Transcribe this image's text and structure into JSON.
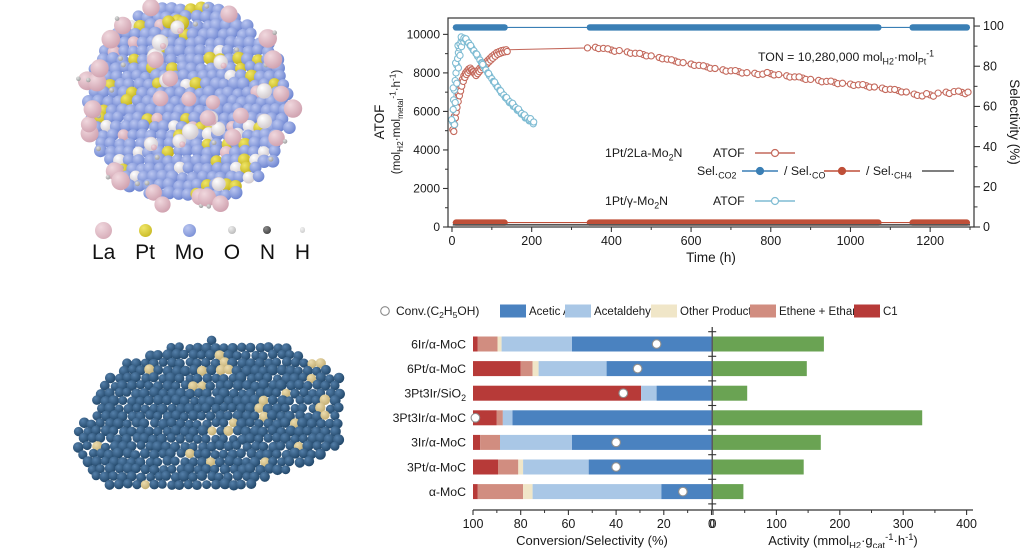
{
  "atom_legend": {
    "items": [
      {
        "label": "La",
        "color": "#cfa0ae",
        "highlight": "#f0d8de",
        "size": 17
      },
      {
        "label": "Pt",
        "color": "#bfae14",
        "highlight": "#f0e668",
        "size": 13
      },
      {
        "label": "Mo",
        "color": "#6a82cf",
        "highlight": "#bac6f0",
        "size": 13
      },
      {
        "label": "O",
        "color": "#ababab",
        "highlight": "#eeeeee",
        "size": 8
      },
      {
        "label": "N",
        "color": "#2f2f2f",
        "highlight": "#8a8a8a",
        "size": 8
      },
      {
        "label": "H",
        "color": "#c4c4c4",
        "highlight": "#f2f2f2",
        "size": 5.5
      }
    ]
  },
  "structures": {
    "top": {
      "base_color": "#6a82cf",
      "base_hi": "#bac6f0",
      "dopant_color": "#bfae14",
      "dopant_hi": "#f0e668",
      "surface_color": "#cfa0ae",
      "surface_hi": "#f0d8de",
      "white_color": "#cfc8cc",
      "white_hi": "#ffffff",
      "speck_color": "#9a9a9a",
      "speck_hi": "#e0e0e0"
    },
    "bottom": {
      "base_color": "#1f4466",
      "base_hi": "#5580aa",
      "metal_color": "#c2ad72",
      "metal_hi": "#ecdcae"
    }
  },
  "chart_data": [
    {
      "type": "scatter",
      "xlabel": "Time (h)",
      "ylabel_left_line1": "ATOF",
      "ylabel_left_line2": "(mol_{H2}·mol_{metal}^{-1}·h^{-1})",
      "ylabel_right": "Selectivity (%)",
      "annotation": "TON = 10,280,000 mol_{H2}·mol_{Pt}^{-1}",
      "xlim": [
        -10,
        1310
      ],
      "ylim_left": [
        0,
        10850
      ],
      "ylim_right": [
        0,
        104
      ],
      "xticks": [
        0,
        200,
        400,
        600,
        800,
        1000,
        1200
      ],
      "yticks_left": [
        0,
        2000,
        4000,
        6000,
        8000,
        10000
      ],
      "yticks_right": [
        0,
        20,
        40,
        60,
        80,
        100
      ],
      "legend": {
        "row1_name": "1Pt/2La-Mo_{2}N",
        "row1_key": "ATOF",
        "row2_items": [
          {
            "label": "Sel._{CO2}",
            "series": "Sel.CO2"
          },
          {
            "label": "/ Sel._{CO}",
            "series": "Sel.CO"
          },
          {
            "label": "/ Sel._{CH4}",
            "series": "Sel.CH4"
          }
        ],
        "row3_name": "1Pt/γ-Mo_{2}N",
        "row3_key": "ATOF"
      },
      "series": [
        {
          "name": "1Pt/2La-Mo2N ATOF",
          "axis": "left",
          "kind": "scatter-line",
          "marker": "open",
          "color": "#c4695c",
          "points": [
            [
              2,
              5050
            ],
            [
              4,
              5400
            ],
            [
              6,
              5750
            ],
            [
              8,
              6050
            ],
            [
              10,
              6300
            ],
            [
              13,
              6600
            ],
            [
              16,
              6900
            ],
            [
              19,
              7150
            ],
            [
              22,
              7400
            ],
            [
              26,
              7650
            ],
            [
              30,
              7850
            ],
            [
              34,
              8000
            ],
            [
              38,
              8100
            ],
            [
              42,
              8200
            ],
            [
              46,
              8250
            ],
            [
              50,
              8150
            ],
            [
              54,
              8050
            ],
            [
              58,
              7950
            ],
            [
              62,
              8050
            ],
            [
              66,
              8150
            ],
            [
              70,
              8250
            ],
            [
              75,
              8350
            ],
            [
              80,
              8450
            ],
            [
              85,
              8550
            ],
            [
              90,
              8650
            ],
            [
              95,
              8750
            ],
            [
              100,
              8850
            ],
            [
              106,
              8950
            ],
            [
              112,
              9050
            ],
            [
              118,
              9100
            ],
            [
              124,
              9150
            ],
            [
              130,
              9180
            ],
            [
              136,
              9200
            ],
            [
              340,
              9300
            ],
            [
              360,
              9330
            ],
            [
              380,
              9270
            ],
            [
              400,
              9190
            ],
            [
              420,
              9160
            ],
            [
              440,
              9090
            ],
            [
              460,
              9020
            ],
            [
              480,
              8950
            ],
            [
              500,
              8880
            ],
            [
              520,
              8800
            ],
            [
              540,
              8710
            ],
            [
              560,
              8620
            ],
            [
              580,
              8530
            ],
            [
              600,
              8460
            ],
            [
              620,
              8390
            ],
            [
              640,
              8310
            ],
            [
              660,
              8230
            ],
            [
              680,
              8160
            ],
            [
              700,
              8110
            ],
            [
              720,
              8060
            ],
            [
              740,
              8010
            ],
            [
              760,
              7980
            ],
            [
              780,
              7930
            ],
            [
              800,
              7960
            ],
            [
              820,
              7910
            ],
            [
              840,
              7850
            ],
            [
              860,
              7790
            ],
            [
              880,
              7730
            ],
            [
              900,
              7660
            ],
            [
              920,
              7610
            ],
            [
              940,
              7560
            ],
            [
              960,
              7510
            ],
            [
              980,
              7460
            ],
            [
              1000,
              7420
            ],
            [
              1020,
              7380
            ],
            [
              1040,
              7330
            ],
            [
              1060,
              7270
            ],
            [
              1080,
              7210
            ],
            [
              1100,
              7150
            ],
            [
              1120,
              7080
            ],
            [
              1140,
              7010
            ],
            [
              1160,
              6900
            ],
            [
              1180,
              6800
            ],
            [
              1200,
              6860
            ],
            [
              1220,
              6950
            ],
            [
              1240,
              7000
            ],
            [
              1260,
              7030
            ],
            [
              1280,
              6990
            ],
            [
              1295,
              7000
            ]
          ]
        },
        {
          "name": "1Pt/γ-Mo2N ATOF",
          "axis": "left",
          "kind": "scatter-line",
          "marker": "open",
          "color": "#7fbcd3",
          "points": [
            [
              2,
              5450
            ],
            [
              3,
              6100
            ],
            [
              4,
              6600
            ],
            [
              6,
              7100
            ],
            [
              8,
              7600
            ],
            [
              10,
              8000
            ],
            [
              12,
              8400
            ],
            [
              14,
              8750
            ],
            [
              16,
              9050
            ],
            [
              18,
              9300
            ],
            [
              20,
              9500
            ],
            [
              23,
              9650
            ],
            [
              26,
              9750
            ],
            [
              30,
              9800
            ],
            [
              34,
              9750
            ],
            [
              38,
              9650
            ],
            [
              42,
              9550
            ],
            [
              46,
              9420
            ],
            [
              50,
              9300
            ],
            [
              55,
              9150
            ],
            [
              60,
              9000
            ],
            [
              65,
              8850
            ],
            [
              70,
              8670
            ],
            [
              75,
              8500
            ],
            [
              80,
              8320
            ],
            [
              85,
              8150
            ],
            [
              90,
              8000
            ],
            [
              95,
              7850
            ],
            [
              100,
              7700
            ],
            [
              105,
              7550
            ],
            [
              110,
              7400
            ],
            [
              115,
              7250
            ],
            [
              120,
              7100
            ],
            [
              125,
              6950
            ],
            [
              130,
              6850
            ],
            [
              135,
              6700
            ],
            [
              140,
              6600
            ],
            [
              145,
              6500
            ],
            [
              150,
              6400
            ],
            [
              155,
              6300
            ],
            [
              160,
              6200
            ],
            [
              165,
              6100
            ],
            [
              170,
              6000
            ],
            [
              175,
              5900
            ],
            [
              180,
              5800
            ],
            [
              185,
              5700
            ],
            [
              190,
              5650
            ],
            [
              195,
              5550
            ],
            [
              200,
              5500
            ],
            [
              205,
              5450
            ]
          ]
        },
        {
          "name": "Sel.CO2",
          "axis": "right",
          "kind": "band",
          "color": "#3a7fb5",
          "value": 99.3,
          "segments": [
            [
              2,
              140
            ],
            [
              338,
              1078
            ],
            [
              1148,
              1300
            ]
          ]
        },
        {
          "name": "Sel.CO",
          "axis": "right",
          "kind": "band",
          "color": "#bf4f38",
          "value": 2.2,
          "segments": [
            [
              2,
              140
            ],
            [
              338,
              1078
            ],
            [
              1148,
              1300
            ]
          ]
        },
        {
          "name": "Sel.CH4",
          "axis": "right",
          "kind": "line",
          "color": "#555555",
          "value": 1.1,
          "segments": [
            [
              2,
              1300
            ]
          ]
        }
      ]
    },
    {
      "type": "bar",
      "orientation": "horizontal",
      "categories": [
        "6Ir/α-MoC",
        "6Pt/α-MoC",
        "3Pt3Ir/SiO_{2}",
        "3Pt3Ir/α-MoC",
        "3Ir/α-MoC",
        "3Pt/α-MoC",
        "α-MoC"
      ],
      "legend": {
        "conv_label": "Conv.(C_{2}H_{5}OH)",
        "items": [
          "Acetic Acid",
          "Acetaldehyde",
          "Other Products",
          "Ethene + Ethane",
          "C1"
        ]
      },
      "left_panel": {
        "xlabel": "Conversion/Selectivity (%)",
        "xlim": [
          100,
          0
        ],
        "xticks": [
          100,
          80,
          60,
          40,
          20,
          0
        ],
        "stack_order": [
          "C1",
          "Ethene + Ethane",
          "Other Products",
          "Acetaldehyde",
          "Acetic Acid"
        ],
        "series": [
          {
            "name": "C1",
            "color": "#b73a38",
            "values": [
              2,
              20,
              70.5,
              10,
              3,
              10.5,
              2
            ]
          },
          {
            "name": "Ethene + Ethane",
            "color": "#d18d80",
            "values": [
              8.3,
              5,
              0,
              2.5,
              8.3,
              8.5,
              19
            ]
          },
          {
            "name": "Other Products",
            "color": "#f0e6c8",
            "values": [
              1.7,
              2.5,
              0,
              0,
              0,
              2,
              4
            ]
          },
          {
            "name": "Acetaldehyde",
            "color": "#a9c7e6",
            "values": [
              29.5,
              28.5,
              6.5,
              4,
              30.2,
              27.5,
              54
            ]
          },
          {
            "name": "Acetic Acid",
            "color": "#4a82c0",
            "values": [
              58.5,
              44,
              23,
              83.5,
              58.5,
              51.5,
              21
            ]
          }
        ],
        "conversion": {
          "name": "Conv.(C2H5OH)",
          "marker": "open-circle",
          "values": [
            23,
            31,
            37,
            99,
            40,
            40,
            12
          ]
        }
      },
      "right_panel": {
        "xlabel": "Activity (mmol_{H2}·g_{cat}^{-1}·h^{-1})",
        "xlim": [
          0,
          410
        ],
        "xticks": [
          0,
          100,
          200,
          300,
          400
        ],
        "series": [
          {
            "name": "Activity",
            "color": "#6aa353",
            "values": [
              175,
              148,
              54,
              330,
              170,
              143,
              48
            ]
          }
        ]
      }
    }
  ]
}
